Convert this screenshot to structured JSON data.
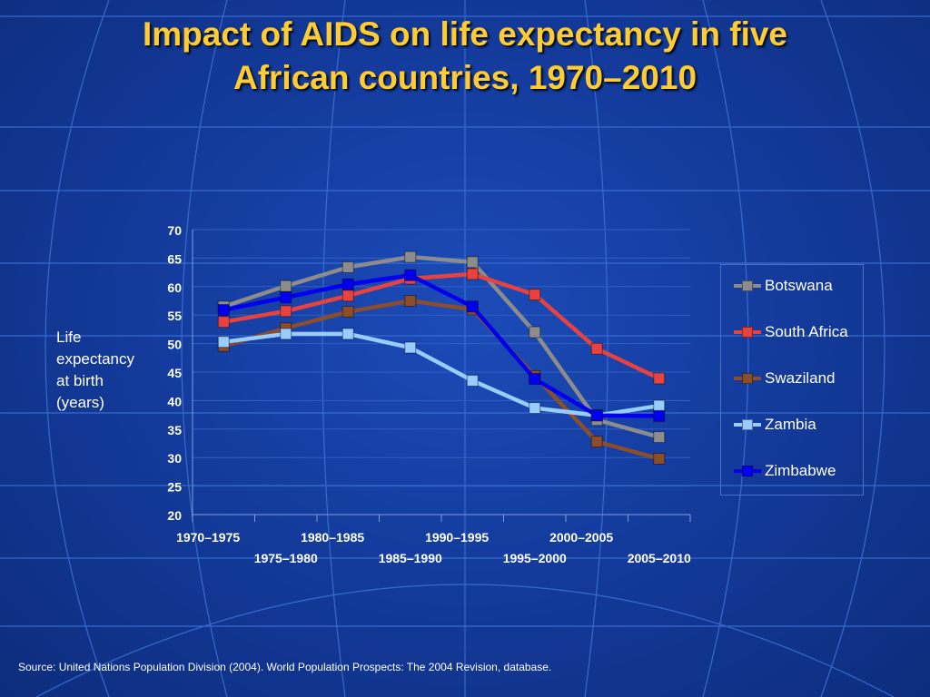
{
  "slide": {
    "title_line1": "Impact of AIDS on life expectancy in five",
    "title_line2": "African countries, 1970–2010",
    "ylabel_lines": [
      "Life",
      "expectancy",
      "at birth",
      "(years)"
    ],
    "source": "Source:  United Nations Population Division (2004).  World Population Prospects: The 2004 Revision, database."
  },
  "chart_data": {
    "type": "line",
    "title": "Impact of AIDS on life expectancy in five African countries, 1970–2010",
    "xlabel": "",
    "ylabel": "Life expectancy at birth (years)",
    "categories": [
      "1970–1975",
      "1975–1980",
      "1980–1985",
      "1985–1990",
      "1990–1995",
      "1995–2000",
      "2000–2005",
      "2005–2010"
    ],
    "ylim": [
      20,
      70
    ],
    "yticks": [
      20,
      25,
      30,
      35,
      40,
      45,
      50,
      55,
      60,
      65,
      70
    ],
    "grid": "horizontal",
    "legend_position": "right",
    "series": [
      {
        "name": "Botswana",
        "color": "#8c8c8c",
        "values": [
          56.5,
          60.1,
          63.4,
          65.2,
          64.3,
          52.0,
          36.6,
          33.6
        ]
      },
      {
        "name": "South Africa",
        "color": "#e8423f",
        "values": [
          53.8,
          55.7,
          58.4,
          61.4,
          62.2,
          58.6,
          49.1,
          43.9
        ]
      },
      {
        "name": "Swaziland",
        "color": "#8b4d2a",
        "values": [
          49.6,
          52.7,
          55.6,
          57.5,
          56.0,
          44.3,
          32.8,
          29.8
        ]
      },
      {
        "name": "Zambia",
        "color": "#99ccff",
        "values": [
          50.3,
          51.7,
          51.7,
          49.3,
          43.5,
          38.7,
          37.4,
          39.1
        ]
      },
      {
        "name": "Zimbabwe",
        "color": "#0000ee",
        "values": [
          55.9,
          58.1,
          60.4,
          62.0,
          56.5,
          43.8,
          37.4,
          37.3
        ]
      }
    ]
  }
}
